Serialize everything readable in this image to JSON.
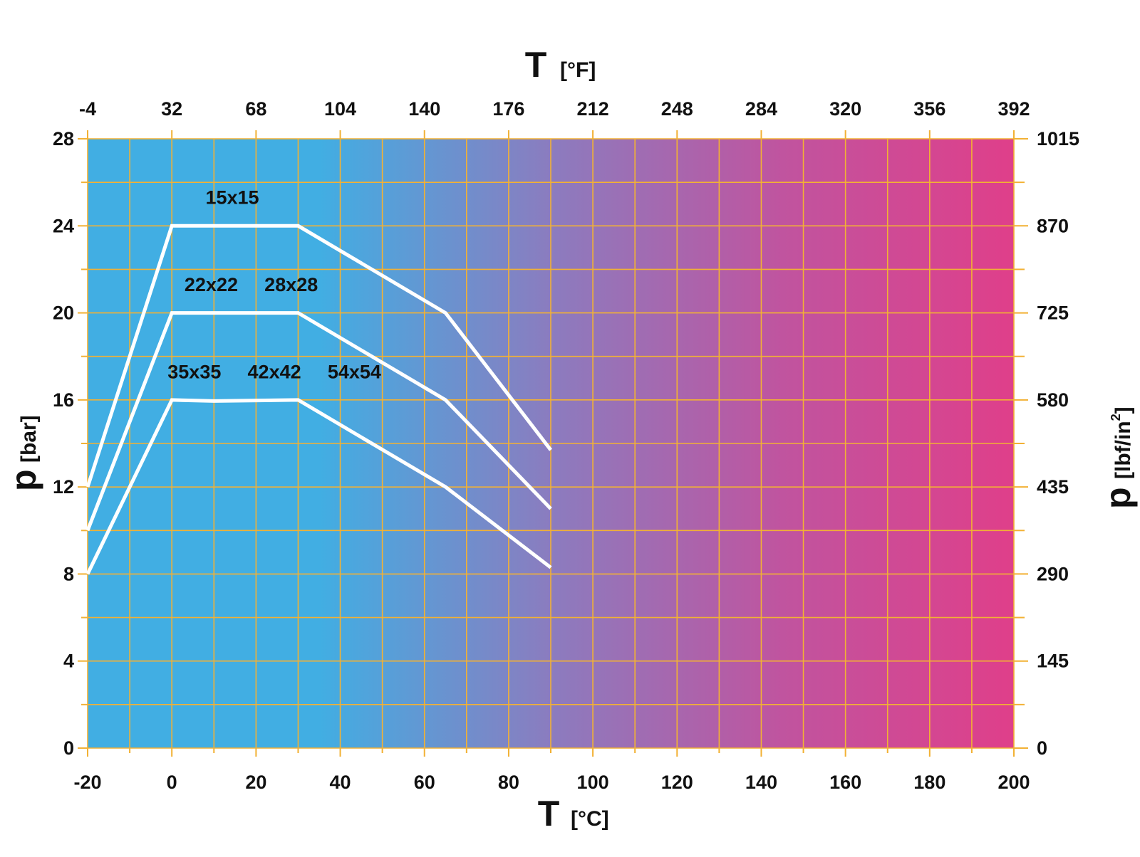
{
  "chart_data": {
    "type": "line",
    "title": "",
    "x_axis": {
      "symbol": "T",
      "unit": "[°C]",
      "range": [
        -20,
        200
      ],
      "ticks": [
        "-20",
        "0",
        "20",
        "40",
        "60",
        "80",
        "100",
        "120",
        "140",
        "160",
        "180",
        "200"
      ],
      "minor_step": 10
    },
    "x2_axis": {
      "symbol": "T",
      "unit": "[°F]",
      "ticks": [
        "-4",
        "32",
        "68",
        "104",
        "140",
        "176",
        "212",
        "248",
        "284",
        "320",
        "356",
        "392"
      ]
    },
    "y_axis": {
      "symbol": "p",
      "unit": "[bar]",
      "range": [
        0,
        28
      ],
      "ticks": [
        "0",
        "4",
        "8",
        "12",
        "16",
        "20",
        "24",
        "28"
      ],
      "minor_step": 2
    },
    "y2_axis": {
      "symbol": "p",
      "unit": "[lbf/in",
      "unit_sup": "2",
      "unit_close": "]",
      "ticks": [
        "0",
        "145",
        "290",
        "435",
        "580",
        "725",
        "870",
        "1015"
      ]
    },
    "grid": true,
    "background_gradient": [
      "#41aee3",
      "#41aee3",
      "#8b7cbf",
      "#c0549f",
      "#df3f8a"
    ],
    "series": [
      {
        "name": "15x15",
        "color": "#ffffff",
        "x": [
          -20,
          0,
          30,
          65,
          90
        ],
        "y": [
          12,
          24,
          24,
          20,
          13.7
        ]
      },
      {
        "name": "22x22 28x28",
        "color": "#ffffff",
        "x": [
          -20,
          0,
          30,
          65,
          90
        ],
        "y": [
          10,
          20,
          20,
          16,
          11
        ]
      },
      {
        "name": "35x35 42x42 54x54",
        "color": "#ffffff",
        "x": [
          -20,
          0,
          10,
          30,
          65,
          90
        ],
        "y": [
          8,
          16,
          15.95,
          16,
          12,
          8.3
        ]
      }
    ],
    "series_labels": [
      {
        "text": "15x15",
        "x": 8,
        "y": 25
      },
      {
        "text": "22x22",
        "x": 3,
        "y": 21
      },
      {
        "text": "28x28",
        "x": 22,
        "y": 21
      },
      {
        "text": "35x35",
        "x": -1,
        "y": 17
      },
      {
        "text": "42x42",
        "x": 18,
        "y": 17
      },
      {
        "text": "54x54",
        "x": 37,
        "y": 17
      }
    ]
  }
}
